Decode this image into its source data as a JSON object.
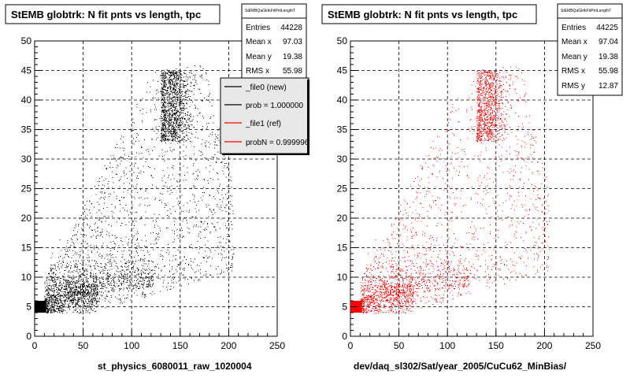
{
  "colors": {
    "new": "#000000",
    "ref": "#ff0000",
    "background": "#ffffff"
  },
  "chart_data": [
    {
      "type": "scatter",
      "title": "StEMB globtrk: N fit pnts vs length, tpc",
      "xlabel": "st_physics_6080011_raw_1020004",
      "ylabel": "",
      "xlim": [
        0,
        250
      ],
      "ylim": [
        0,
        50
      ],
      "x_ticks": [
        "0",
        "50",
        "100",
        "150",
        "200",
        "250"
      ],
      "y_ticks": [
        "0",
        "5",
        "10",
        "15",
        "20",
        "25",
        "30",
        "35",
        "40",
        "45",
        "50"
      ],
      "grid": true,
      "color": "#000000",
      "stats": {
        "name": "StEMBQaGlrtkFitPntLengthT",
        "rows": [
          {
            "label": "Entries",
            "value": "44228"
          },
          {
            "label": "Mean x",
            "value": "97.03"
          },
          {
            "label": "Mean y",
            "value": "19.38"
          },
          {
            "label": "RMS x",
            "value": "55.98"
          }
        ]
      },
      "legend": {
        "placement": "top-right",
        "entries": [
          {
            "label": "_file0 (new)",
            "color": "#000000"
          },
          {
            "label": "prob = 1.000000",
            "color": "#000000"
          },
          {
            "label": "_file1 (ref)",
            "color": "#ff0000"
          },
          {
            "label": "probN = 0.999996",
            "color": "#ff0000"
          }
        ]
      }
    },
    {
      "type": "scatter",
      "title": "StEMB globtrk: N fit pnts vs length, tpc",
      "xlabel": "dev/daq_sl302/Sat/year_2005/CuCu62_MinBias/",
      "ylabel": "",
      "xlim": [
        0,
        250
      ],
      "ylim": [
        0,
        50
      ],
      "x_ticks": [
        "0",
        "50",
        "100",
        "150",
        "200",
        "250"
      ],
      "y_ticks": [
        "0",
        "5",
        "10",
        "15",
        "20",
        "25",
        "30",
        "35",
        "40",
        "45",
        "50"
      ],
      "grid": true,
      "color": "#ff0000",
      "stats": {
        "name": "StEMBQaGlrtkFitPntLengthT",
        "rows": [
          {
            "label": "Entries",
            "value": "44225"
          },
          {
            "label": "Mean x",
            "value": "97.04"
          },
          {
            "label": "Mean y",
            "value": "19.38"
          },
          {
            "label": "RMS x",
            "value": "55.98"
          },
          {
            "label": "RMS y",
            "value": "12.87"
          }
        ]
      }
    }
  ]
}
